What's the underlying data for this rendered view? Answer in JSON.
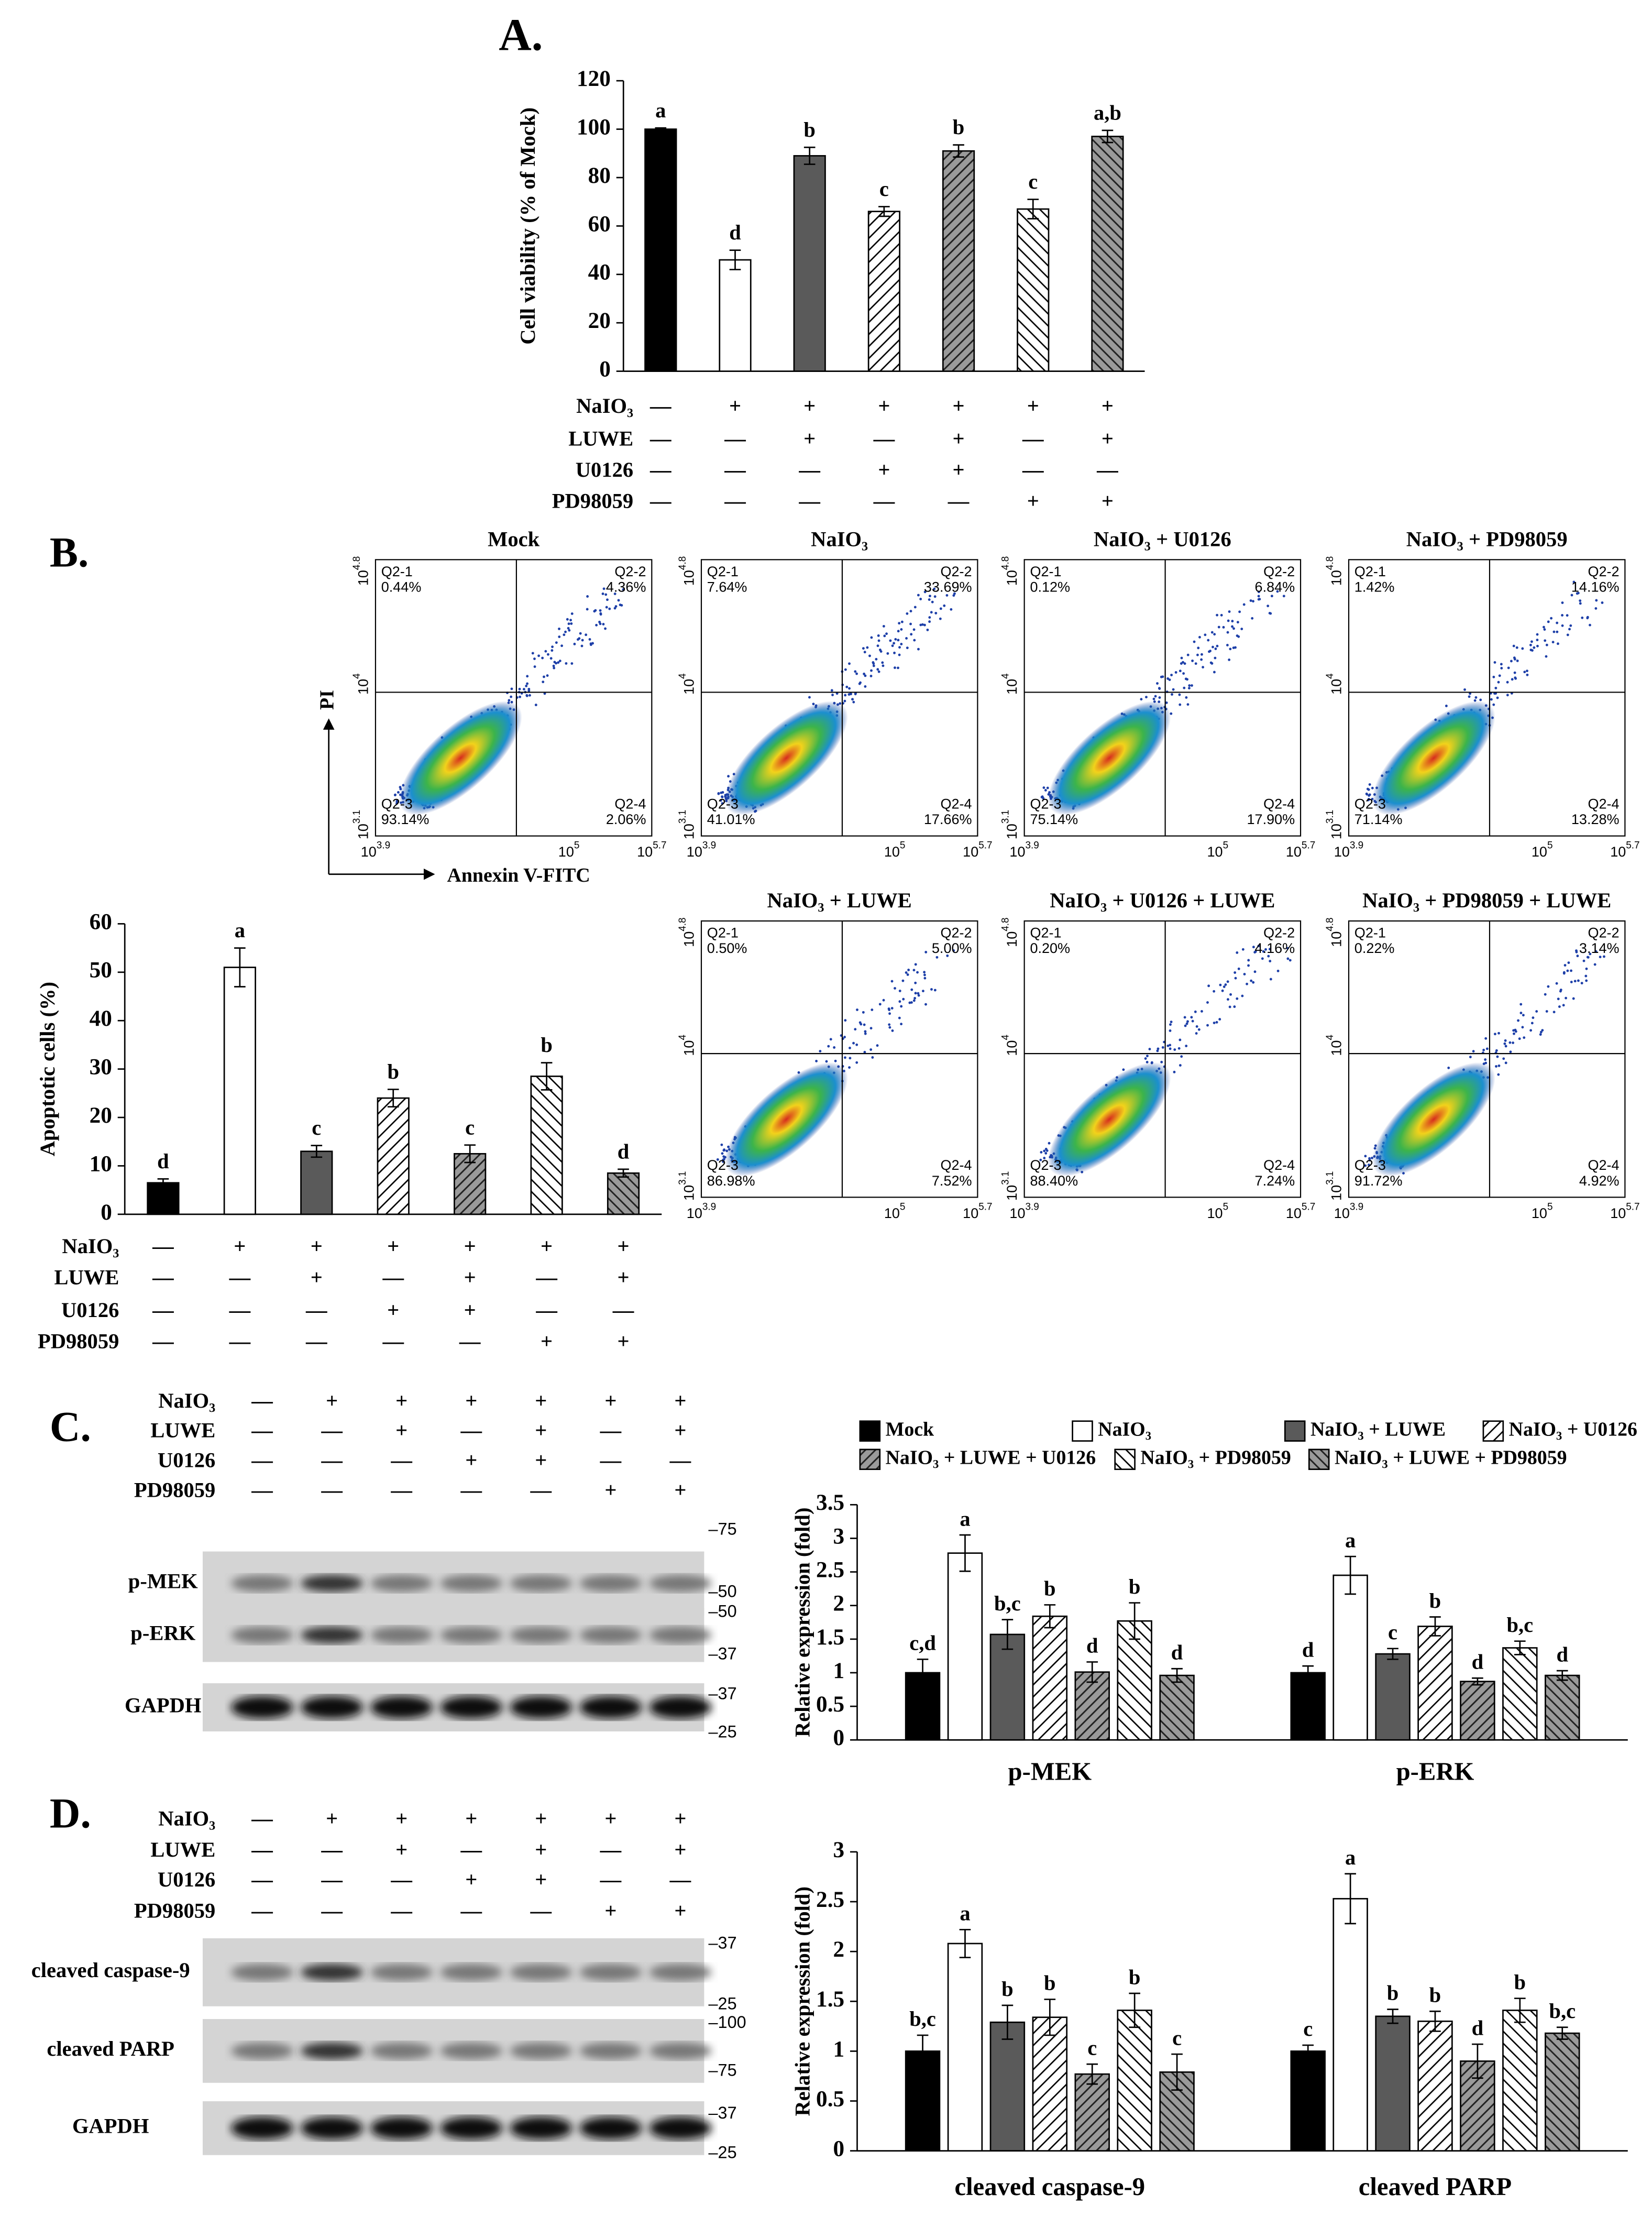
{
  "panel_labels": [
    "A.",
    "B.",
    "C.",
    "D."
  ],
  "chart_data": [
    {
      "type": "bar",
      "y_label": "Cell viability (% of Mock)",
      "values": [
        100,
        46,
        89,
        66,
        91,
        67,
        97
      ],
      "errors": [
        0.5,
        4,
        3.5,
        2,
        2.5,
        4,
        2.5
      ],
      "letters": [
        "a",
        "d",
        "b",
        "c",
        "b",
        "c",
        "a,b"
      ],
      "patterns": [
        "black",
        "white",
        "grey",
        "hatch-back",
        "grey-hatch-back",
        "hatch-fwd",
        "grey-hatch-fwd"
      ],
      "ylim": [
        0,
        120
      ],
      "yticks": [
        0,
        20,
        40,
        60,
        80,
        100,
        120
      ],
      "treatments": [
        {
          "name": "NaIO₃",
          "marks": [
            "—",
            "+",
            "+",
            "+",
            "+",
            "+",
            "+"
          ]
        },
        {
          "name": "LUWE",
          "marks": [
            "—",
            "—",
            "+",
            "—",
            "+",
            "—",
            "+"
          ]
        },
        {
          "name": "U0126",
          "marks": [
            "—",
            "—",
            "—",
            "+",
            "+",
            "—",
            "—"
          ]
        },
        {
          "name": "PD98059",
          "marks": [
            "—",
            "—",
            "—",
            "—",
            "—",
            "+",
            "+"
          ]
        }
      ]
    },
    {
      "type": "bar",
      "y_label": "Apoptotic cells (%)",
      "values": [
        6.5,
        51,
        13,
        24,
        12.5,
        28.5,
        8.5
      ],
      "errors": [
        0.8,
        4,
        1.2,
        1.8,
        1.8,
        2.8,
        0.8
      ],
      "letters": [
        "d",
        "a",
        "c",
        "b",
        "c",
        "b",
        "d"
      ],
      "patterns": [
        "black",
        "white",
        "grey",
        "hatch-back",
        "grey-hatch-back",
        "hatch-fwd",
        "grey-hatch-fwd"
      ],
      "ylim": [
        0,
        60
      ],
      "yticks": [
        0,
        10,
        20,
        30,
        40,
        50,
        60
      ],
      "treatments": [
        {
          "name": "NaIO₃",
          "marks": [
            "—",
            "+",
            "+",
            "+",
            "+",
            "+",
            "+"
          ]
        },
        {
          "name": "LUWE",
          "marks": [
            "—",
            "—",
            "+",
            "—",
            "+",
            "—",
            "+"
          ]
        },
        {
          "name": "U0126",
          "marks": [
            "—",
            "—",
            "—",
            "+",
            "+",
            "—",
            "—"
          ]
        },
        {
          "name": "PD98059",
          "marks": [
            "—",
            "—",
            "—",
            "—",
            "—",
            "+",
            "+"
          ]
        }
      ]
    },
    {
      "type": "bar",
      "y_label": "Relative expression (fold)",
      "legend": "top",
      "categories": [
        "p-MEK",
        "p-ERK"
      ],
      "series": [
        {
          "name": "Mock",
          "pattern": "black",
          "values": [
            1.0,
            1.0
          ],
          "errors": [
            0.2,
            0.1
          ],
          "letters": [
            "c,d",
            "d"
          ]
        },
        {
          "name": "NaIO₃",
          "pattern": "white",
          "values": [
            2.78,
            2.45
          ],
          "errors": [
            0.27,
            0.28
          ],
          "letters": [
            "a",
            "a"
          ]
        },
        {
          "name": "NaIO₃ + LUWE",
          "pattern": "grey",
          "values": [
            1.57,
            1.28
          ],
          "errors": [
            0.22,
            0.08
          ],
          "letters": [
            "b,c",
            "c"
          ]
        },
        {
          "name": "NaIO₃ + U0126",
          "pattern": "hatch-back",
          "values": [
            1.84,
            1.69
          ],
          "errors": [
            0.17,
            0.14
          ],
          "letters": [
            "b",
            "b"
          ]
        },
        {
          "name": "NaIO₃ + LUWE + U0126",
          "pattern": "grey-hatch-back",
          "values": [
            1.01,
            0.87
          ],
          "errors": [
            0.15,
            0.05
          ],
          "letters": [
            "d",
            "d"
          ]
        },
        {
          "name": "NaIO₃ + PD98059",
          "pattern": "hatch-fwd",
          "values": [
            1.77,
            1.37
          ],
          "errors": [
            0.27,
            0.1
          ],
          "letters": [
            "b",
            "b,c"
          ]
        },
        {
          "name": "NaIO₃ + LUWE + PD98059",
          "pattern": "grey-hatch-fwd",
          "values": [
            0.96,
            0.96
          ],
          "errors": [
            0.1,
            0.07
          ],
          "letters": [
            "d",
            "d"
          ]
        }
      ],
      "ylim": [
        0,
        3.5
      ],
      "yticks": [
        0,
        0.5,
        1,
        1.5,
        2,
        2.5,
        3,
        3.5
      ]
    },
    {
      "type": "bar",
      "y_label": "Relative expression (fold)",
      "categories": [
        "cleaved caspase-9",
        "cleaved PARP"
      ],
      "series": [
        {
          "pattern": "black",
          "values": [
            1.0,
            1.0
          ],
          "errors": [
            0.16,
            0.06
          ],
          "letters": [
            "b,c",
            "c"
          ]
        },
        {
          "pattern": "white",
          "values": [
            2.08,
            2.53
          ],
          "errors": [
            0.14,
            0.25
          ],
          "letters": [
            "a",
            "a"
          ]
        },
        {
          "pattern": "grey",
          "values": [
            1.29,
            1.35
          ],
          "errors": [
            0.17,
            0.07
          ],
          "letters": [
            "b",
            "b"
          ]
        },
        {
          "pattern": "hatch-back",
          "values": [
            1.34,
            1.3
          ],
          "errors": [
            0.18,
            0.1
          ],
          "letters": [
            "b",
            "b"
          ]
        },
        {
          "pattern": "grey-hatch-back",
          "values": [
            0.77,
            0.9
          ],
          "errors": [
            0.1,
            0.17
          ],
          "letters": [
            "c",
            "d"
          ]
        },
        {
          "pattern": "hatch-fwd",
          "values": [
            1.41,
            1.41
          ],
          "errors": [
            0.17,
            0.12
          ],
          "letters": [
            "b",
            "b"
          ]
        },
        {
          "pattern": "grey-hatch-fwd",
          "values": [
            0.79,
            1.18
          ],
          "errors": [
            0.18,
            0.06
          ],
          "letters": [
            "c",
            "b,c"
          ]
        }
      ],
      "ylim": [
        0,
        3
      ],
      "yticks": [
        0,
        0.5,
        1,
        1.5,
        2,
        2.5,
        3
      ]
    }
  ],
  "flow_cytometry": {
    "x_label": "Annexin V-FITC",
    "y_label": "PI",
    "xticks": [
      {
        "base": "10",
        "exp": "3.9"
      },
      {
        "base": "10",
        "exp": "5"
      },
      {
        "base": "10",
        "exp": "5.7"
      }
    ],
    "yticks": [
      {
        "base": "10",
        "exp": "4.8"
      },
      {
        "base": "10",
        "exp": "4"
      },
      {
        "base": "10",
        "exp": "3.1"
      }
    ],
    "plots": [
      {
        "title": "Mock",
        "quadrants": [
          {
            "name": "Q2-1",
            "value": "0.44%"
          },
          {
            "name": "Q2-2",
            "value": "4.36%"
          },
          {
            "name": "Q2-3",
            "value": "93.14%"
          },
          {
            "name": "Q2-4",
            "value": "2.06%"
          }
        ]
      },
      {
        "title": "NaIO₃",
        "quadrants": [
          {
            "name": "Q2-1",
            "value": "7.64%"
          },
          {
            "name": "Q2-2",
            "value": "33.69%"
          },
          {
            "name": "Q2-3",
            "value": "41.01%"
          },
          {
            "name": "Q2-4",
            "value": "17.66%"
          }
        ]
      },
      {
        "title": "NaIO₃ + U0126",
        "quadrants": [
          {
            "name": "Q2-1",
            "value": "0.12%"
          },
          {
            "name": "Q2-2",
            "value": "6.84%"
          },
          {
            "name": "Q2-3",
            "value": "75.14%"
          },
          {
            "name": "Q2-4",
            "value": "17.90%"
          }
        ]
      },
      {
        "title": "NaIO₃ + PD98059",
        "quadrants": [
          {
            "name": "Q2-1",
            "value": "1.42%"
          },
          {
            "name": "Q2-2",
            "value": "14.16%"
          },
          {
            "name": "Q2-3",
            "value": "71.14%"
          },
          {
            "name": "Q2-4",
            "value": "13.28%"
          }
        ]
      },
      {
        "title": "NaIO₃ + LUWE",
        "quadrants": [
          {
            "name": "Q2-1",
            "value": "0.50%"
          },
          {
            "name": "Q2-2",
            "value": "5.00%"
          },
          {
            "name": "Q2-3",
            "value": "86.98%"
          },
          {
            "name": "Q2-4",
            "value": "7.52%"
          }
        ]
      },
      {
        "title": "NaIO₃ + U0126 + LUWE",
        "quadrants": [
          {
            "name": "Q2-1",
            "value": "0.20%"
          },
          {
            "name": "Q2-2",
            "value": "4.16%"
          },
          {
            "name": "Q2-3",
            "value": "88.40%"
          },
          {
            "name": "Q2-4",
            "value": "7.24%"
          }
        ]
      },
      {
        "title": "NaIO₃ + PD98059 + LUWE",
        "quadrants": [
          {
            "name": "Q2-1",
            "value": "0.22%"
          },
          {
            "name": "Q2-2",
            "value": "3.14%"
          },
          {
            "name": "Q2-3",
            "value": "91.72%"
          },
          {
            "name": "Q2-4",
            "value": "4.92%"
          }
        ]
      }
    ]
  },
  "blots": [
    {
      "treatments": [
        {
          "name": "NaIO₃",
          "marks": [
            "—",
            "+",
            "+",
            "+",
            "+",
            "+",
            "+"
          ]
        },
        {
          "name": "LUWE",
          "marks": [
            "—",
            "—",
            "+",
            "—",
            "+",
            "—",
            "+"
          ]
        },
        {
          "name": "U0126",
          "marks": [
            "—",
            "—",
            "—",
            "+",
            "+",
            "—",
            "—"
          ]
        },
        {
          "name": "PD98059",
          "marks": [
            "—",
            "—",
            "—",
            "—",
            "—",
            "+",
            "+"
          ]
        }
      ],
      "bands": [
        {
          "name": "p-MEK",
          "markers": [
            "–75",
            "–50"
          ]
        },
        {
          "name": "p-ERK",
          "markers": [
            "–50",
            "–37"
          ]
        },
        {
          "name": "GAPDH",
          "markers": [
            "–37",
            "–25"
          ]
        }
      ]
    },
    {
      "treatments": [
        {
          "name": "NaIO₃",
          "marks": [
            "—",
            "+",
            "+",
            "+",
            "+",
            "+",
            "+"
          ]
        },
        {
          "name": "LUWE",
          "marks": [
            "—",
            "—",
            "+",
            "—",
            "+",
            "—",
            "+"
          ]
        },
        {
          "name": "U0126",
          "marks": [
            "—",
            "—",
            "—",
            "+",
            "+",
            "—",
            "—"
          ]
        },
        {
          "name": "PD98059",
          "marks": [
            "—",
            "—",
            "—",
            "—",
            "—",
            "+",
            "+"
          ]
        }
      ],
      "bands": [
        {
          "name": "cleaved caspase-9",
          "markers": [
            "–37",
            "–25"
          ]
        },
        {
          "name": "cleaved PARP",
          "markers": [
            "–100",
            "–75"
          ]
        },
        {
          "name": "GAPDH",
          "markers": [
            "–37",
            "–25"
          ]
        }
      ]
    }
  ]
}
